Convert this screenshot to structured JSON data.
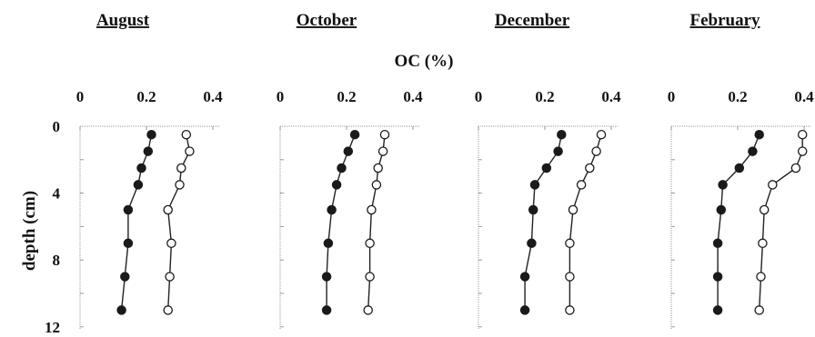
{
  "chart_data": {
    "type": "scatter",
    "xlabel": "OC (%)",
    "ylabel": "depth (cm)",
    "xlim": [
      0,
      0.4
    ],
    "ylim": [
      12,
      0
    ],
    "x_ticks": [
      "0",
      "0.2",
      "0.4"
    ],
    "y_ticks": [
      "0",
      "4",
      "8",
      "12"
    ],
    "y_tick_values": [
      0,
      4,
      8,
      12
    ],
    "grid": false,
    "panels": [
      {
        "title": "August",
        "series": [
          {
            "marker": "filled",
            "depth": [
              0.5,
              1.5,
              2.5,
              3.5,
              5,
              7,
              9,
              11
            ],
            "values": [
              0.215,
              0.205,
              0.185,
              0.175,
              0.145,
              0.145,
              0.135,
              0.125
            ]
          },
          {
            "marker": "open",
            "depth": [
              0.5,
              1.5,
              2.5,
              3.5,
              5,
              7,
              9,
              11
            ],
            "values": [
              0.32,
              0.33,
              0.305,
              0.3,
              0.265,
              0.275,
              0.27,
              0.265
            ]
          }
        ]
      },
      {
        "title": "October",
        "series": [
          {
            "marker": "filled",
            "depth": [
              0.5,
              1.5,
              2.5,
              3.5,
              5,
              7,
              9,
              11
            ],
            "values": [
              0.225,
              0.205,
              0.185,
              0.17,
              0.155,
              0.145,
              0.14,
              0.14
            ]
          },
          {
            "marker": "open",
            "depth": [
              0.5,
              1.5,
              2.5,
              3.5,
              5,
              7,
              9,
              11
            ],
            "values": [
              0.315,
              0.31,
              0.295,
              0.29,
              0.275,
              0.27,
              0.27,
              0.265
            ]
          }
        ]
      },
      {
        "title": "December",
        "series": [
          {
            "marker": "filled",
            "depth": [
              0.5,
              1.5,
              2.5,
              3.5,
              5,
              7,
              9,
              11
            ],
            "values": [
              0.25,
              0.24,
              0.205,
              0.17,
              0.165,
              0.16,
              0.14,
              0.14
            ]
          },
          {
            "marker": "open",
            "depth": [
              0.5,
              1.5,
              2.5,
              3.5,
              5,
              7,
              9,
              11
            ],
            "values": [
              0.37,
              0.355,
              0.335,
              0.31,
              0.285,
              0.275,
              0.275,
              0.275
            ]
          }
        ]
      },
      {
        "title": "February",
        "series": [
          {
            "marker": "filled",
            "depth": [
              0.5,
              1.5,
              2.5,
              3.5,
              5,
              7,
              9,
              11
            ],
            "values": [
              0.265,
              0.245,
              0.205,
              0.155,
              0.15,
              0.14,
              0.14,
              0.14
            ]
          },
          {
            "marker": "open",
            "depth": [
              0.5,
              1.5,
              2.5,
              3.5,
              5,
              7,
              9,
              11
            ],
            "values": [
              0.395,
              0.395,
              0.375,
              0.305,
              0.28,
              0.275,
              0.27,
              0.265
            ]
          }
        ]
      }
    ]
  }
}
